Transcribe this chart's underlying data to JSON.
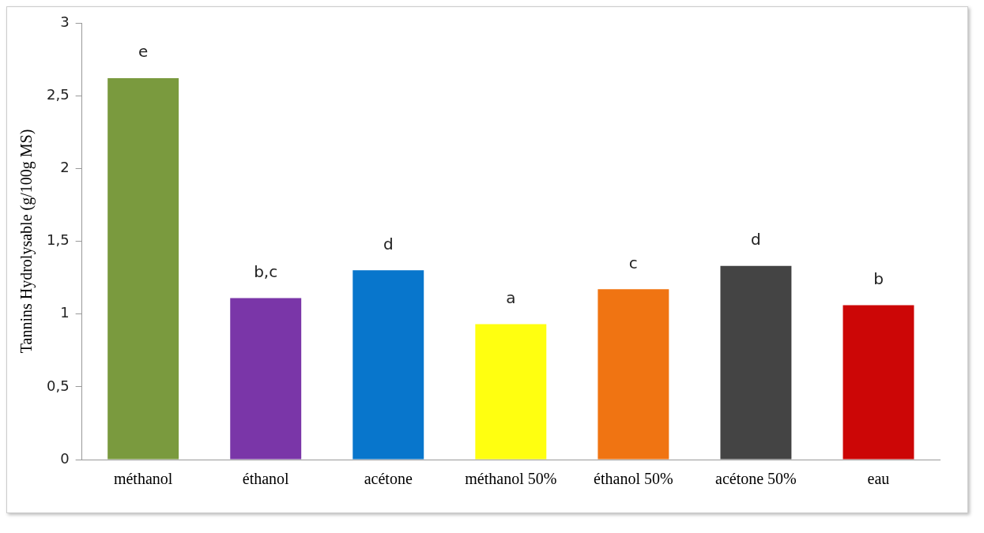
{
  "chart_data": {
    "type": "bar",
    "ylabel": "Tannins Hydrolysable (g/100g MS)",
    "categories": [
      "méthanol",
      "éthanol",
      "acétone",
      "méthanol 50%",
      "éthanol 50%",
      "acétone 50%",
      "eau"
    ],
    "values": [
      2.62,
      1.11,
      1.3,
      0.93,
      1.17,
      1.33,
      1.06
    ],
    "colors": [
      "#7a9a3e",
      "#7a36a8",
      "#0876cc",
      "#ffff10",
      "#f07412",
      "#444444",
      "#cc0606"
    ],
    "ylim": [
      0,
      3
    ],
    "yticks": [
      0,
      {
        "value": 0.5,
        "label": "0,5"
      },
      1,
      {
        "value": 1.5,
        "label": "1,5"
      },
      2,
      {
        "value": 2.5,
        "label": "2,5"
      },
      3
    ],
    "grid": false,
    "legend": false,
    "annotations": [
      {
        "text": "e",
        "x": "méthanol",
        "y": 2.62
      },
      {
        "text": "b,c",
        "x": "éthanol",
        "y": 1.11
      },
      {
        "text": "d",
        "x": "acétone",
        "y": 1.3
      },
      {
        "text": "a",
        "x": "méthanol 50%",
        "y": 0.93
      },
      {
        "text": "c",
        "x": "éthanol 50%",
        "y": 1.17
      },
      {
        "text": "d",
        "x": "acétone 50%",
        "y": 1.33
      },
      {
        "text": "b",
        "x": "eau",
        "y": 1.06
      }
    ]
  }
}
